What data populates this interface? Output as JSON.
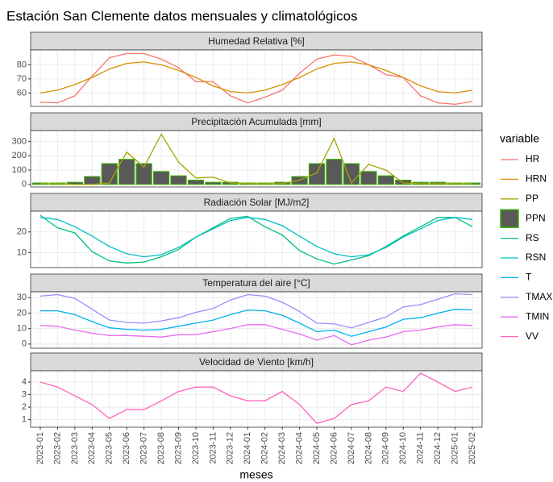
{
  "chart_data": {
    "type": "facet",
    "title": "Estación San Clemente datos mensuales y climatológicos",
    "x_label": "meses",
    "legend_title": "variable",
    "grid": true,
    "categories": [
      "2023-01",
      "2023-02",
      "2023-03",
      "2023-04",
      "2023-05",
      "2023-06",
      "2023-07",
      "2023-08",
      "2023-09",
      "2023-10",
      "2023-11",
      "2023-12",
      "2024-01",
      "2024-02",
      "2024-03",
      "2024-04",
      "2024-05",
      "2024-06",
      "2024-07",
      "2024-08",
      "2024-09",
      "2024-10",
      "2024-11",
      "2024-12",
      "2025-01",
      "2025-02"
    ],
    "panels": [
      {
        "type": "line",
        "title": "Humedad Relativa [%]",
        "ylim": [
          50.5,
          90.5
        ],
        "yticks": [
          60,
          70,
          80
        ],
        "series": [
          {
            "name": "HR",
            "color": "#F8766D",
            "values": [
              53.5,
              53,
              58,
              72,
              85,
              88,
              88,
              84,
              78,
              68,
              68,
              58,
              53,
              57,
              62,
              74,
              84,
              87,
              86,
              80,
              73,
              71,
              58,
              53,
              52,
              54
            ]
          },
          {
            "name": "HRN",
            "color": "#D89000",
            "values": [
              60,
              62,
              66,
              71,
              77,
              81,
              82,
              80,
              76,
              71,
              65,
              61,
              60,
              62,
              66,
              71,
              77,
              81,
              82,
              80,
              76,
              71,
              65,
              61,
              60,
              62
            ]
          }
        ]
      },
      {
        "type": "line",
        "title": "Precipitación Acumulada [mm]",
        "ylim": [
          -18,
          375
        ],
        "yticks": [
          0,
          100,
          200,
          300
        ],
        "series": [
          {
            "name": "PP",
            "color": "#A3A500",
            "values": [
              5,
              5,
              0,
              0,
              10,
              225,
              120,
              350,
              155,
              45,
              50,
              10,
              5,
              5,
              5,
              30,
              80,
              320,
              10,
              140,
              100,
              10,
              5,
              5,
              5,
              5
            ]
          },
          {
            "name": "PPN",
            "type": "bar",
            "fill": "#595959",
            "color": "#39B600",
            "values": [
              10,
              10,
              15,
              55,
              145,
              175,
              145,
              90,
              60,
              30,
              15,
              15,
              10,
              10,
              15,
              55,
              145,
              175,
              145,
              90,
              60,
              30,
              15,
              15,
              10,
              10
            ]
          }
        ]
      },
      {
        "type": "line",
        "title": "Radiación Solar [MJ/m2]",
        "ylim": [
          2.8,
          30
        ],
        "yticks": [
          10,
          20
        ],
        "series": [
          {
            "name": "RS",
            "color": "#00BF7D",
            "values": [
              28,
              22,
              19.5,
              10.5,
              6,
              5,
              5.5,
              8,
              11.5,
              17.5,
              22,
              26.5,
              27.5,
              22.5,
              18.5,
              11,
              7,
              4.5,
              6.5,
              8.5,
              13,
              18,
              22.5,
              27,
              27,
              22.5
            ]
          },
          {
            "name": "RSN",
            "color": "#00BFC4",
            "values": [
              27,
              26,
              22.5,
              18,
              13,
              9.5,
              8,
              9,
              12.5,
              17.5,
              21.5,
              25.5,
              27,
              26,
              23,
              18,
              13,
              9.5,
              8,
              9,
              12.5,
              17.5,
              21.5,
              25.5,
              27,
              26
            ]
          }
        ]
      },
      {
        "type": "line",
        "title": "Temperatura del aire [°C]",
        "ylim": [
          -2.7,
          33.8
        ],
        "yticks": [
          0,
          10,
          20,
          30
        ],
        "series": [
          {
            "name": "T",
            "color": "#00B0F6",
            "values": [
              21.5,
              21.5,
              19,
              14.5,
              10.5,
              9.5,
              9,
              9.5,
              11.5,
              13.5,
              15.5,
              19,
              22,
              21.5,
              18.5,
              13.5,
              8,
              9,
              5,
              8,
              11,
              16,
              17,
              20,
              22.5,
              22
            ]
          },
          {
            "name": "TMAX",
            "color": "#9590FF",
            "values": [
              31,
              32,
              29.5,
              22.5,
              15.5,
              14,
              13.5,
              15,
              17,
              20.5,
              23,
              28.5,
              32,
              31,
              27,
              21,
              13.5,
              13,
              10.5,
              14,
              17.5,
              24,
              25.5,
              29,
              32.5,
              32
            ]
          },
          {
            "name": "TMIN",
            "color": "#E76BF3",
            "values": [
              12,
              11.5,
              9,
              7,
              5.5,
              5.5,
              5,
              4.5,
              6,
              6,
              8,
              10,
              12.5,
              12.5,
              9.5,
              6.5,
              2.5,
              5.5,
              -0.5,
              2.5,
              4.5,
              8,
              9,
              11,
              12.5,
              12
            ]
          }
        ]
      },
      {
        "type": "line",
        "title": "Velocidad de Viento [km/h]",
        "ylim": [
          0.4,
          4.9
        ],
        "yticks": [
          1,
          2,
          3,
          4
        ],
        "series": [
          {
            "name": "VV",
            "color": "#FF62BC",
            "values": [
              4,
              3.6,
              2.9,
              2.2,
              1.1,
              1.8,
              1.8,
              2.5,
              3.25,
              3.6,
              3.6,
              2.9,
              2.5,
              2.5,
              3.25,
              2.2,
              0.7,
              1.1,
              2.2,
              2.5,
              3.6,
              3.25,
              4.7,
              4,
              3.25,
              3.6
            ]
          }
        ]
      }
    ]
  }
}
